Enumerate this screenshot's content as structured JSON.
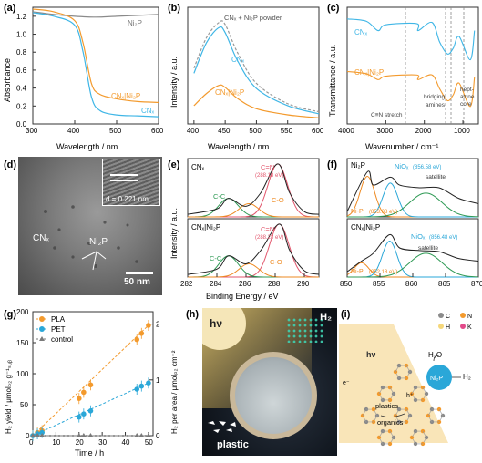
{
  "colors": {
    "cnx": "#3fb6e6",
    "cnx_ni2p": "#f39a2d",
    "ni2p": "#8a8a8a",
    "fit_red": "#e2566c",
    "fit_green": "#2f9a55",
    "fit_orange": "#ee8a22",
    "nio_blue": "#2aa7d8",
    "pla": "#f39a2d",
    "pet": "#2aa7d8",
    "control": "#7a7a7a"
  },
  "panel_labels": [
    "(a)",
    "(b)",
    "(c)",
    "(d)",
    "(e)",
    "(f)",
    "(g)",
    "(h)",
    "(i)"
  ],
  "panel_a": {
    "ylabel": "Absorbance",
    "xlabel": "Wavelength / nm",
    "yticks": [
      "0.0",
      "0.2",
      "0.4",
      "0.6",
      "0.8",
      "1.0",
      "1.2"
    ],
    "xticks": [
      "300",
      "400",
      "500",
      "600"
    ],
    "labels": {
      "ni2p": "Ni₂P",
      "cnx_ni2p": "CNₓ|Ni₂P",
      "cnx": "CNₓ"
    }
  },
  "panel_b": {
    "ylabel": "Intensity / a.u.",
    "xlabel": "Wavelength / nm",
    "xticks": [
      "400",
      "450",
      "500",
      "550",
      "600"
    ],
    "labels": {
      "powder": "CNₓ + Ni₂P powder",
      "cnx": "CNₓ",
      "cnx_ni2p": "CNₓ|Ni₂P"
    }
  },
  "panel_c": {
    "ylabel": "Transmittance / a.u.",
    "xlabel": "Wavenumber / cm⁻¹",
    "xticks": [
      "4000",
      "3000",
      "2000",
      "1000"
    ],
    "labels": {
      "cnx": "CNₓ",
      "cnx_ni2p": "CNₓ|Ni₂P",
      "cn_stretch": "C≡N stretch",
      "bridging": "bridging",
      "amines": "amines",
      "hept": "hept-",
      "azine": "azine",
      "core": "core"
    }
  },
  "panel_d": {
    "d_spacing": "d = 0.221 nm",
    "cnx": "CNₓ",
    "ni2p": "Ni₂P",
    "scale": "50 nm"
  },
  "panel_e": {
    "ylabel": "Intensity / a.u.",
    "xlabel": "Binding Energy / eV",
    "xticks": [
      "282",
      "284",
      "286",
      "288",
      "290"
    ],
    "top": {
      "sample": "CNₓ",
      "cn": "C=N",
      "cn_ev": "(288.18 eV)",
      "cc": "C-C",
      "co": "C-O"
    },
    "bottom": {
      "sample": "CNₓ|Ni₂P",
      "cn": "C=N",
      "cn_ev": "(288.28 eV)",
      "cc": "C-C",
      "co": "C-O"
    }
  },
  "panel_f": {
    "xticks": [
      "850",
      "855",
      "860",
      "865",
      "870"
    ],
    "top": {
      "sample": "Ni₂P",
      "niox": "NiOₓ",
      "niox_ev": "(856.58 eV)",
      "satellite": "satellite",
      "nip": "Ni-P",
      "nip_ev": "(853.08 eV)"
    },
    "bottom": {
      "sample": "CNₓ|Ni₂P",
      "niox": "NiOₓ",
      "niox_ev": "(856.48 eV)",
      "satellite": "satellite",
      "nip": "Ni-P",
      "nip_ev": "(852.18 eV)"
    }
  },
  "panel_g": {
    "ylabel_left": "H₂ yield / μmolₚ₂ g⁻¹ₛᵤᵦ",
    "ylabel_right": "H₂ per area / μmolₚ₂ cm⁻²",
    "xlabel": "Time / h",
    "xticks": [
      "0",
      "10",
      "20",
      "30",
      "40",
      "50"
    ],
    "yticks_left": [
      "0",
      "50",
      "100",
      "150",
      "200"
    ],
    "yticks_right": [
      "0",
      "1",
      "2"
    ],
    "legend": [
      "PLA",
      "PET",
      "control"
    ]
  },
  "panel_h": {
    "hv": "hν",
    "h2": "H₂",
    "plastic": "plastic"
  },
  "panel_i": {
    "hv": "hν",
    "h2o": "H₂O",
    "h2": "H₂",
    "ni2p": "Ni₂P",
    "plastics": "plastics",
    "organics": "organics",
    "hplus": "h⁺",
    "eminus": "e⁻",
    "legend": [
      {
        "label": "C",
        "color": "#8b8b8b"
      },
      {
        "label": "H",
        "color": "#f5d77a"
      },
      {
        "label": "N",
        "color": "#f39a2d"
      },
      {
        "label": "K",
        "color": "#e24a8a"
      }
    ]
  },
  "chart_data": [
    {
      "panel": "a",
      "type": "line",
      "xlabel": "Wavelength / nm",
      "ylabel": "Absorbance",
      "xlim": [
        300,
        600
      ],
      "ylim": [
        0,
        1.3
      ],
      "series": [
        {
          "name": "Ni₂P",
          "x": [
            300,
            350,
            400,
            450,
            500,
            550,
            600
          ],
          "values": [
            1.25,
            1.22,
            1.2,
            1.19,
            1.2,
            1.21,
            1.22
          ]
        },
        {
          "name": "CNₓ|Ni₂P",
          "x": [
            300,
            350,
            400,
            420,
            440,
            460,
            500,
            550,
            600
          ],
          "values": [
            1.28,
            1.25,
            1.15,
            0.9,
            0.45,
            0.33,
            0.28,
            0.25,
            0.24
          ]
        },
        {
          "name": "CNₓ",
          "x": [
            300,
            350,
            400,
            420,
            440,
            460,
            500,
            550,
            600
          ],
          "values": [
            1.24,
            1.2,
            1.1,
            0.8,
            0.3,
            0.15,
            0.1,
            0.09,
            0.08
          ]
        }
      ]
    },
    {
      "panel": "b",
      "type": "line",
      "xlabel": "Wavelength / nm",
      "ylabel": "Intensity / a.u.",
      "xlim": [
        390,
        600
      ],
      "series": [
        {
          "name": "CNₓ + Ni₂P powder",
          "x": [
            400,
            420,
            440,
            450,
            470,
            500,
            550,
            600
          ],
          "values": [
            0.55,
            0.85,
            1.0,
            0.98,
            0.7,
            0.4,
            0.2,
            0.12
          ]
        },
        {
          "name": "CNₓ",
          "x": [
            400,
            420,
            440,
            450,
            470,
            500,
            550,
            600
          ],
          "values": [
            0.5,
            0.8,
            0.95,
            0.9,
            0.62,
            0.35,
            0.18,
            0.1
          ]
        },
        {
          "name": "CNₓ|Ni₂P",
          "x": [
            400,
            420,
            440,
            450,
            470,
            500,
            550,
            600
          ],
          "values": [
            0.18,
            0.3,
            0.38,
            0.36,
            0.25,
            0.15,
            0.09,
            0.06
          ]
        }
      ]
    },
    {
      "panel": "c",
      "type": "line",
      "xlabel": "Wavenumber / cm⁻¹",
      "ylabel": "Transmittance / a.u.",
      "xlim": [
        4000,
        600
      ],
      "series": [
        {
          "name": "CNₓ",
          "x": [
            4000,
            3500,
            3200,
            3000,
            2200,
            2160,
            1800,
            1600,
            1400,
            1250,
            1100,
            810,
            700
          ],
          "values": [
            0.9,
            0.88,
            0.8,
            0.85,
            0.86,
            0.8,
            0.87,
            0.7,
            0.6,
            0.65,
            0.75,
            0.55,
            0.8
          ]
        },
        {
          "name": "CNₓ|Ni₂P",
          "x": [
            4000,
            3500,
            3200,
            3000,
            2200,
            2160,
            1800,
            1600,
            1400,
            1250,
            1100,
            810,
            700
          ],
          "values": [
            0.45,
            0.43,
            0.38,
            0.41,
            0.42,
            0.38,
            0.42,
            0.3,
            0.2,
            0.25,
            0.35,
            0.15,
            0.4
          ]
        }
      ]
    },
    {
      "panel": "e",
      "type": "line",
      "xlabel": "Binding Energy / eV",
      "ylabel": "Intensity / a.u.",
      "xlim": [
        282,
        291
      ],
      "series": [
        {
          "name": "CNₓ",
          "x": [
            282,
            284,
            284.8,
            286,
            287,
            288.18,
            289,
            290,
            291
          ],
          "values": [
            0.05,
            0.15,
            0.35,
            0.2,
            0.45,
            1.0,
            0.45,
            0.1,
            0.05
          ]
        },
        {
          "name": "CNₓ|Ni₂P",
          "x": [
            282,
            284,
            284.8,
            286,
            287,
            288.28,
            289,
            290,
            291
          ],
          "values": [
            0.05,
            0.15,
            0.4,
            0.25,
            0.5,
            1.0,
            0.5,
            0.12,
            0.05
          ]
        }
      ]
    },
    {
      "panel": "f",
      "type": "line",
      "xlabel": "Binding Energy / eV",
      "xlim": [
        850,
        870
      ],
      "series": [
        {
          "name": "Ni₂P",
          "x": [
            850,
            853.08,
            854,
            856.58,
            858,
            861,
            864,
            867,
            870
          ],
          "values": [
            0.1,
            0.85,
            0.6,
            0.75,
            0.6,
            0.55,
            0.55,
            0.35,
            0.25
          ]
        },
        {
          "name": "CNₓ|Ni₂P",
          "x": [
            850,
            852.18,
            854,
            856.48,
            858,
            861,
            864,
            867,
            870
          ],
          "values": [
            0.1,
            0.3,
            0.45,
            0.8,
            0.55,
            0.5,
            0.48,
            0.35,
            0.3
          ]
        }
      ]
    },
    {
      "panel": "g",
      "type": "scatter",
      "xlabel": "Time / h",
      "ylabel": "H₂ yield / μmolₚ₂ g⁻¹ₛᵤᵦ",
      "xlim": [
        0,
        52
      ],
      "ylim": [
        0,
        200
      ],
      "series": [
        {
          "name": "PLA",
          "x": [
            0,
            2,
            4,
            20,
            22,
            25,
            45,
            47,
            50
          ],
          "values": [
            0,
            5,
            8,
            60,
            70,
            82,
            155,
            165,
            178
          ]
        },
        {
          "name": "PET",
          "x": [
            0,
            2,
            4,
            20,
            22,
            25,
            45,
            47,
            50
          ],
          "values": [
            0,
            3,
            5,
            30,
            35,
            40,
            75,
            80,
            85
          ]
        },
        {
          "name": "control",
          "x": [
            0,
            2,
            4,
            20,
            22,
            25,
            45,
            47,
            50
          ],
          "values": [
            0,
            0,
            0,
            0,
            0,
            0,
            0,
            0,
            0
          ]
        }
      ]
    }
  ]
}
